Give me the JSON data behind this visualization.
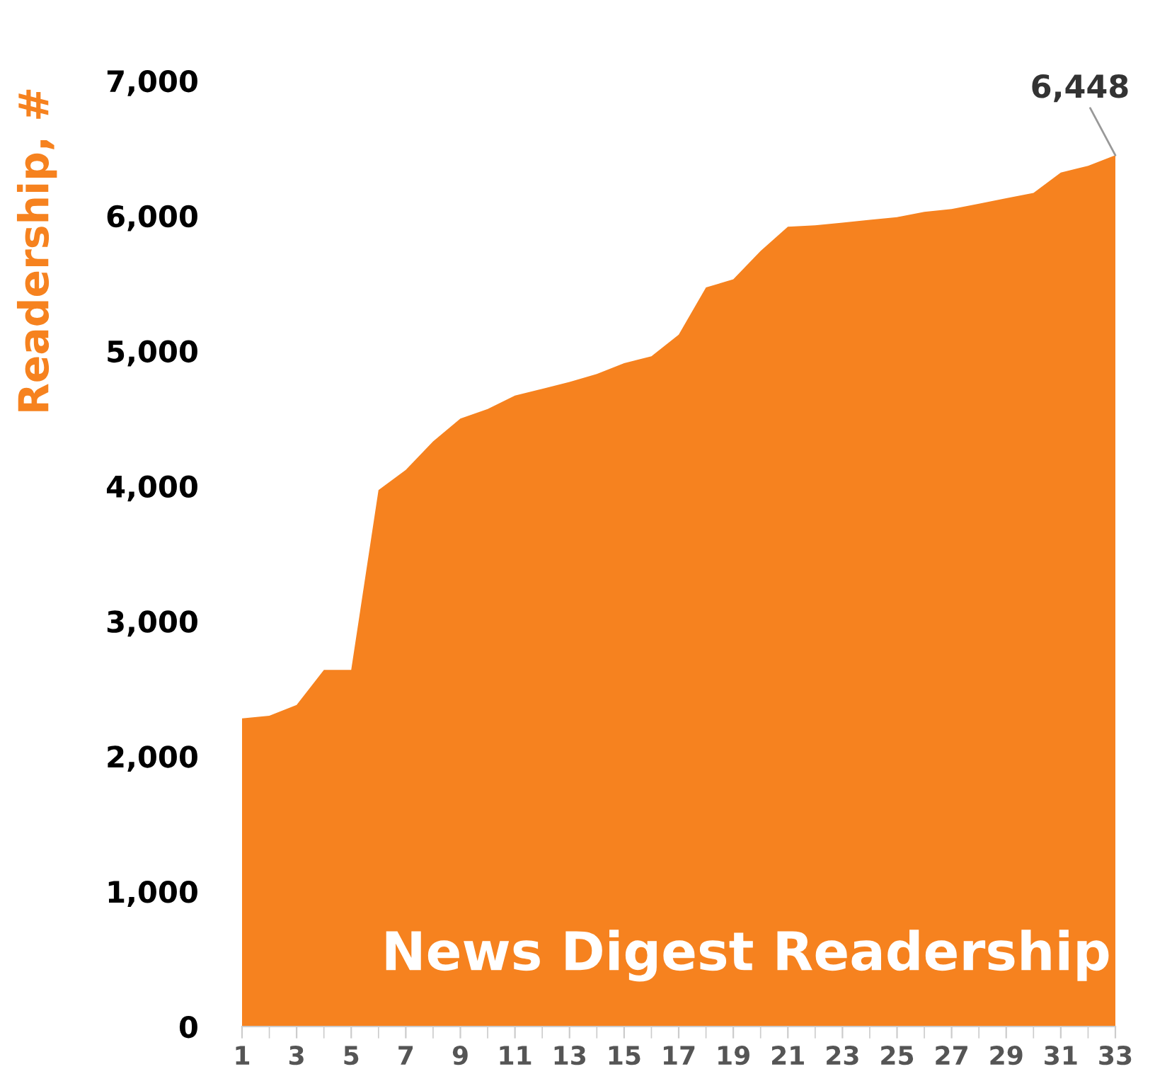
{
  "chart_data": {
    "type": "area",
    "title": "News Digest Readership",
    "ylabel": "Readership, #",
    "x": [
      1,
      2,
      3,
      4,
      5,
      6,
      7,
      8,
      9,
      10,
      11,
      12,
      13,
      14,
      15,
      16,
      17,
      18,
      19,
      20,
      21,
      22,
      23,
      24,
      25,
      26,
      27,
      28,
      29,
      30,
      31,
      32,
      33
    ],
    "series": [
      {
        "color": "#f6821f",
        "values": [
          2280,
          2300,
          2380,
          2640,
          2640,
          3970,
          4120,
          4330,
          4500,
          4570,
          4670,
          4720,
          4770,
          4830,
          4910,
          4960,
          5120,
          5470,
          5530,
          5740,
          5920,
          5930,
          5950,
          5970,
          5990,
          6030,
          6050,
          6090,
          6130,
          6170,
          6320,
          6370,
          6448
        ],
        "value_labels": [
          null,
          null,
          null,
          null,
          null,
          null,
          null,
          null,
          null,
          null,
          null,
          null,
          null,
          null,
          null,
          null,
          null,
          null,
          null,
          null,
          null,
          null,
          null,
          null,
          null,
          null,
          null,
          null,
          null,
          null,
          null,
          null,
          "6,448"
        ]
      }
    ],
    "xlim": [
      1,
      33
    ],
    "xticks": [
      1,
      3,
      5,
      7,
      9,
      11,
      13,
      15,
      17,
      19,
      21,
      23,
      25,
      27,
      29,
      31,
      33
    ],
    "ylim": [
      0,
      7000
    ],
    "yticks": [
      {
        "value": 0,
        "label": "0"
      },
      {
        "value": 1000,
        "label": "1,000"
      },
      {
        "value": 2000,
        "label": "2,000"
      },
      {
        "value": 3000,
        "label": "3,000"
      },
      {
        "value": 4000,
        "label": "4,000"
      },
      {
        "value": 5000,
        "label": "5,000"
      },
      {
        "value": 6000,
        "label": "6,000"
      },
      {
        "value": 7000,
        "label": "7,000"
      }
    ],
    "grid": false,
    "legend": false
  }
}
